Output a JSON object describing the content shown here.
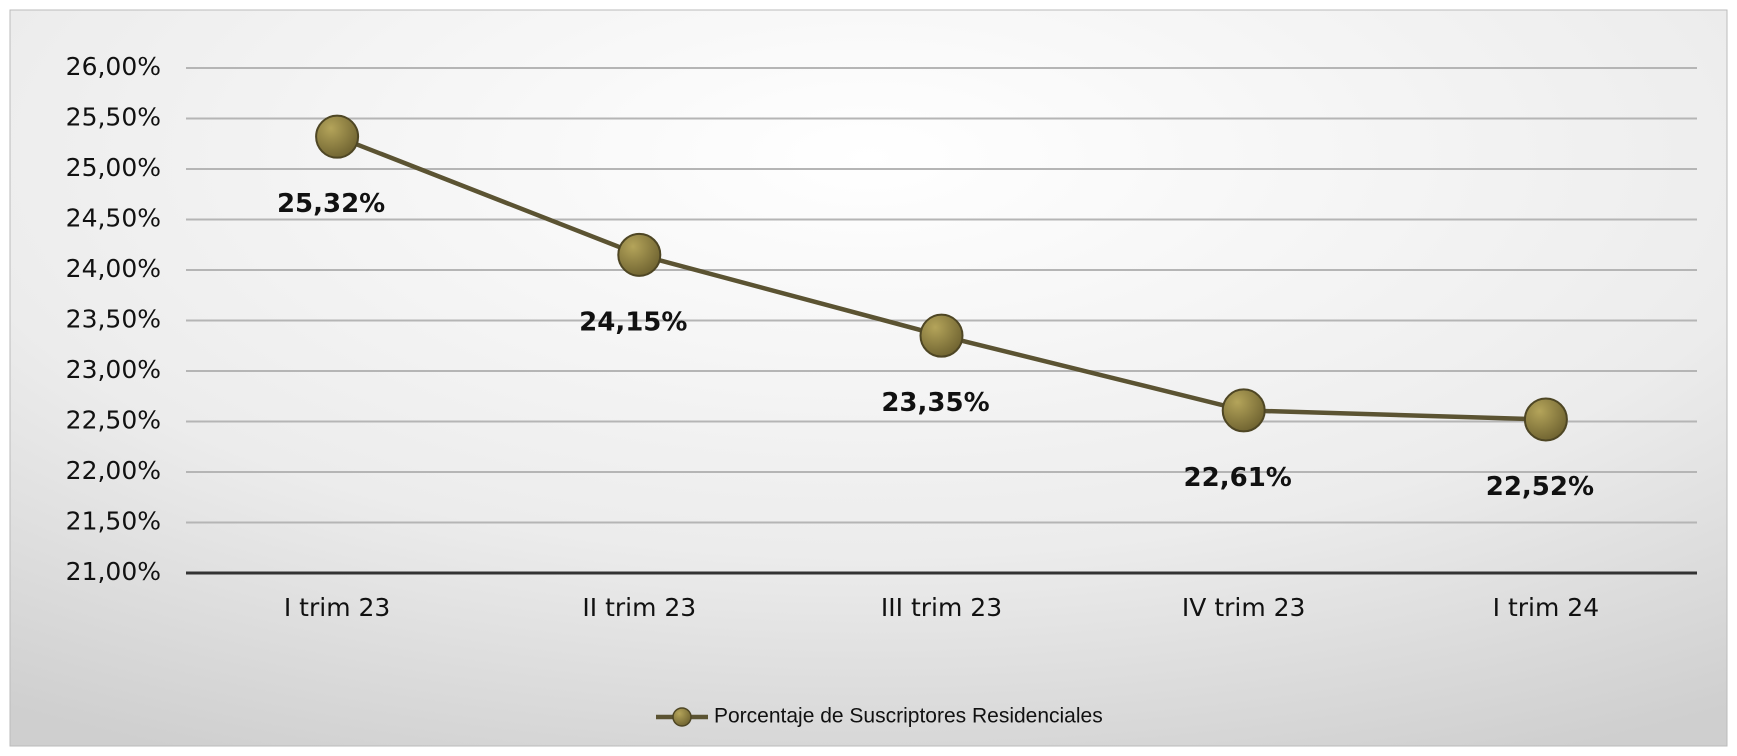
{
  "chart_data": {
    "type": "line",
    "categories": [
      "I trim 23",
      "II trim 23",
      "III trim 23",
      "IV trim 23",
      "I trim 24"
    ],
    "series": [
      {
        "name": "Porcentaje de Suscriptores Residenciales",
        "color": "#5b5332",
        "marker_color": "#8a7c3c",
        "values": [
          25.32,
          24.15,
          23.35,
          22.61,
          22.52
        ],
        "value_labels": [
          "25,32%",
          "24,15%",
          "23,35%",
          "22,61%",
          "22,52%"
        ]
      }
    ],
    "ylim": [
      21,
      26
    ],
    "yticks": [
      {
        "value": 21,
        "label": "21,00%"
      },
      {
        "value": 21.5,
        "label": "21,50%"
      },
      {
        "value": 22,
        "label": "22,00%"
      },
      {
        "value": 22.5,
        "label": "22,50%"
      },
      {
        "value": 23,
        "label": "23,00%"
      },
      {
        "value": 23.5,
        "label": "23,50%"
      },
      {
        "value": 24,
        "label": "24,00%"
      },
      {
        "value": 24.5,
        "label": "24,50%"
      },
      {
        "value": 25,
        "label": "25,00%"
      },
      {
        "value": 25.5,
        "label": "25,50%"
      },
      {
        "value": 26,
        "label": "26,00%"
      }
    ],
    "grid": true,
    "legend": "bottom"
  }
}
